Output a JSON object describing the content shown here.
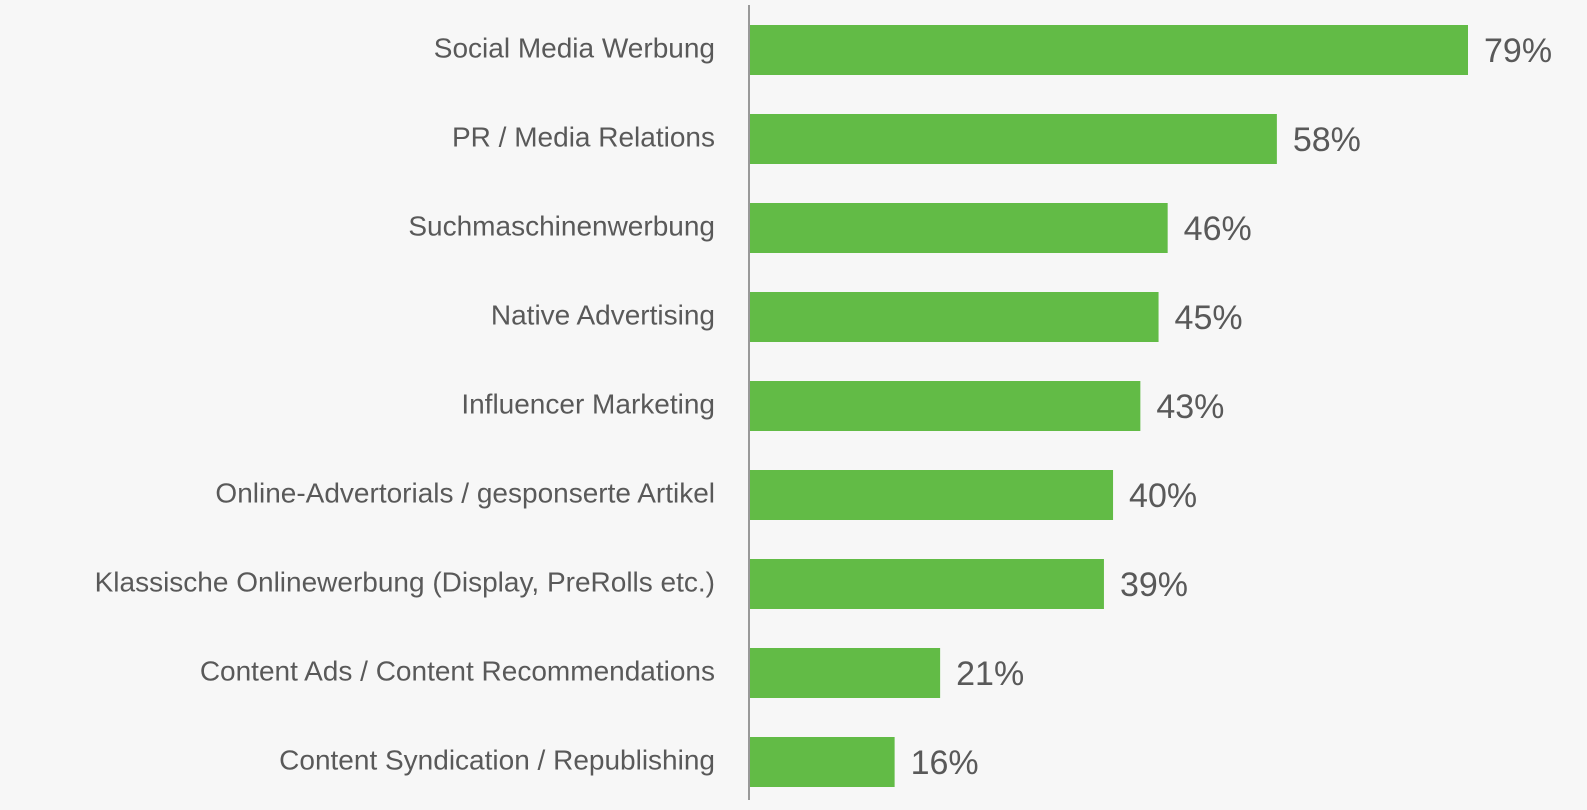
{
  "chart_data": {
    "type": "hbar",
    "categories": [
      "Social Media Werbung",
      "PR / Media Relations",
      "Suchmaschinenwerbung",
      "Native Advertising",
      "Influencer Marketing",
      "Online-Advertorials / gesponserte Artikel",
      "Klassische Onlinewerbung (Display, PreRolls etc.)",
      "Content Ads / Content Recommendations",
      "Content Syndication / Republishing"
    ],
    "values": [
      79,
      58,
      46,
      45,
      43,
      40,
      39,
      21,
      16
    ],
    "value_labels": [
      "79%",
      "58%",
      "46%",
      "45%",
      "43%",
      "40%",
      "39%",
      "21%",
      "16%"
    ],
    "color": "#62bb46"
  }
}
